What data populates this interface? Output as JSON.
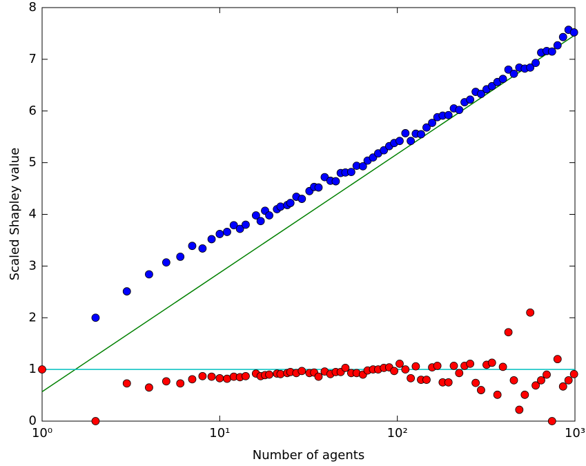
{
  "chart_data": {
    "type": "scatter",
    "xscale": "log",
    "xlabel": "Number of agents",
    "ylabel": "Scaled Shapley value",
    "xlim": [
      1,
      1000
    ],
    "ylim": [
      0,
      8
    ],
    "xticks": [
      {
        "value": 1,
        "label": "10⁰"
      },
      {
        "value": 10,
        "label": "10¹"
      },
      {
        "value": 100,
        "label": "10²"
      },
      {
        "value": 1000,
        "label": "10³"
      }
    ],
    "yticks": [
      0,
      1,
      2,
      3,
      4,
      5,
      6,
      7,
      8
    ],
    "x": [
      1,
      2,
      3,
      4,
      5,
      6,
      7,
      8,
      9,
      10,
      11,
      12,
      13,
      14,
      16,
      17,
      18,
      19,
      21,
      22,
      24,
      25,
      27,
      29,
      32,
      34,
      36,
      39,
      42,
      45,
      48,
      51,
      55,
      59,
      64,
      68,
      73,
      78,
      84,
      90,
      96,
      103,
      111,
      119,
      127,
      136,
      146,
      157,
      168,
      180,
      194,
      208,
      223,
      239,
      257,
      276,
      296,
      318,
      341,
      366,
      393,
      422,
      453,
      486,
      522,
      560,
      601,
      645,
      693,
      743,
      798,
      857,
      920,
      988
    ],
    "series": [
      {
        "color": "#0000ff",
        "values": [
          null,
          2.0,
          2.51,
          2.84,
          3.07,
          3.18,
          3.39,
          3.34,
          3.52,
          3.62,
          3.66,
          3.79,
          3.72,
          3.8,
          3.98,
          3.87,
          4.07,
          3.98,
          4.1,
          4.15,
          4.18,
          4.22,
          4.34,
          4.3,
          4.45,
          4.53,
          4.52,
          4.72,
          4.65,
          4.64,
          4.8,
          4.81,
          4.82,
          4.94,
          4.93,
          5.04,
          5.1,
          5.18,
          5.24,
          5.32,
          5.38,
          5.42,
          5.57,
          5.42,
          5.56,
          5.55,
          5.68,
          5.77,
          5.88,
          5.91,
          5.92,
          6.05,
          6.02,
          6.17,
          6.22,
          6.37,
          6.33,
          6.42,
          6.48,
          6.56,
          6.62,
          6.8,
          6.72,
          6.84,
          6.82,
          6.84,
          6.93,
          7.13,
          7.16,
          7.15,
          7.27,
          7.43,
          7.57,
          7.52
        ]
      },
      {
        "color": "#ff0000",
        "values": [
          1.0,
          0.0,
          0.73,
          0.65,
          0.77,
          0.73,
          0.81,
          0.87,
          0.86,
          0.83,
          0.82,
          0.86,
          0.85,
          0.87,
          0.92,
          0.87,
          0.89,
          0.9,
          0.92,
          0.91,
          0.93,
          0.95,
          0.93,
          0.97,
          0.93,
          0.94,
          0.86,
          0.96,
          0.91,
          0.95,
          0.95,
          1.03,
          0.93,
          0.93,
          0.9,
          0.98,
          1.0,
          1.0,
          1.03,
          1.04,
          0.97,
          1.11,
          1.0,
          0.83,
          1.06,
          0.8,
          0.8,
          1.04,
          1.07,
          0.75,
          0.75,
          1.07,
          0.93,
          1.07,
          1.11,
          0.74,
          0.6,
          1.09,
          1.13,
          0.51,
          1.05,
          1.72,
          0.79,
          0.22,
          0.51,
          2.1,
          0.69,
          0.79,
          0.9,
          0.0,
          1.2,
          0.67,
          0.79,
          0.91
        ]
      }
    ],
    "lines": [
      {
        "color": "#008000",
        "x": [
          1,
          1000
        ],
        "values": [
          0.57,
          7.47
        ]
      },
      {
        "color": "#00bfbf",
        "x": [
          1,
          1000
        ],
        "values": [
          1,
          1
        ]
      }
    ]
  }
}
